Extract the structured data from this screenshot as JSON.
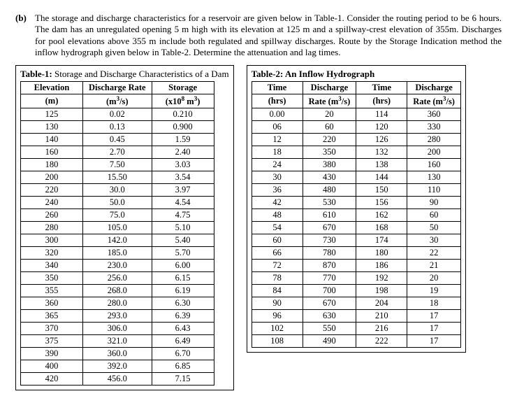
{
  "problem": {
    "label": "(b)",
    "text": "The storage and discharge characteristics for a reservoir are given below in Table-1. Consider the routing period to be 6 hours. The dam has an unregulated opening 5 m high with its elevation at 125 m and a spillway-crest elevation of 355m. Discharges for pool elevations above 355 m include both regulated and spillway discharges. Route by the Storage Indication method the inflow hydrograph given below in Table-2. Determine the attenuation and lag times."
  },
  "table1": {
    "caption_bold": "Table-1:",
    "caption_rest": " Storage and Discharge Characteristics of a Dam",
    "headers": {
      "col1_line1": "Elevation",
      "col1_line2": "(m)",
      "col2_line1": "Discharge Rate",
      "col2_line2_html": "(m³/s)",
      "col3_line1": "Storage",
      "col3_line2_html": "(x10⁸ m³)"
    },
    "rows": [
      [
        "125",
        "0.02",
        "0.210"
      ],
      [
        "130",
        "0.13",
        "0.900"
      ],
      [
        "140",
        "0.45",
        "1.59"
      ],
      [
        "160",
        "2.70",
        "2.40"
      ],
      [
        "180",
        "7.50",
        "3.03"
      ],
      [
        "200",
        "15.50",
        "3.54"
      ],
      [
        "220",
        "30.0",
        "3.97"
      ],
      [
        "240",
        "50.0",
        "4.54"
      ],
      [
        "260",
        "75.0",
        "4.75"
      ],
      [
        "280",
        "105.0",
        "5.10"
      ],
      [
        "300",
        "142.0",
        "5.40"
      ],
      [
        "320",
        "185.0",
        "5.70"
      ],
      [
        "340",
        "230.0",
        "6.00"
      ],
      [
        "350",
        "256.0",
        "6.15"
      ],
      [
        "355",
        "268.0",
        "6.19"
      ],
      [
        "360",
        "280.0",
        "6.30"
      ],
      [
        "365",
        "293.0",
        "6.39"
      ],
      [
        "370",
        "306.0",
        "6.43"
      ],
      [
        "375",
        "321.0",
        "6.49"
      ],
      [
        "390",
        "360.0",
        "6.70"
      ],
      [
        "400",
        "392.0",
        "6.85"
      ],
      [
        "420",
        "456.0",
        "7.15"
      ]
    ]
  },
  "table2": {
    "caption_bold": "Table-2: An Inflow Hydrograph",
    "headers": {
      "c1_l1": "Time",
      "c1_l2": "(hrs)",
      "c2_l1": "Discharge",
      "c2_l2_html": "Rate (m³/s)",
      "c3_l1": "Time",
      "c3_l2": "(hrs)",
      "c4_l1": "Discharge",
      "c4_l2_html": "Rate (m³/s)"
    },
    "rows": [
      [
        "0.00",
        "20",
        "114",
        "360"
      ],
      [
        "06",
        "60",
        "120",
        "330"
      ],
      [
        "12",
        "220",
        "126",
        "280"
      ],
      [
        "18",
        "350",
        "132",
        "200"
      ],
      [
        "24",
        "380",
        "138",
        "160"
      ],
      [
        "30",
        "430",
        "144",
        "130"
      ],
      [
        "36",
        "480",
        "150",
        "110"
      ],
      [
        "42",
        "530",
        "156",
        "90"
      ],
      [
        "48",
        "610",
        "162",
        "60"
      ],
      [
        "54",
        "670",
        "168",
        "50"
      ],
      [
        "60",
        "730",
        "174",
        "30"
      ],
      [
        "66",
        "780",
        "180",
        "22"
      ],
      [
        "72",
        "870",
        "186",
        "21"
      ],
      [
        "78",
        "770",
        "192",
        "20"
      ],
      [
        "84",
        "700",
        "198",
        "19"
      ],
      [
        "90",
        "670",
        "204",
        "18"
      ],
      [
        "96",
        "630",
        "210",
        "17"
      ],
      [
        "102",
        "550",
        "216",
        "17"
      ],
      [
        "108",
        "490",
        "222",
        "17"
      ]
    ]
  },
  "style": {
    "font_family": "Times New Roman",
    "body_fontsize_pt": 10,
    "border_color": "#000000",
    "background_color": "#ffffff"
  }
}
